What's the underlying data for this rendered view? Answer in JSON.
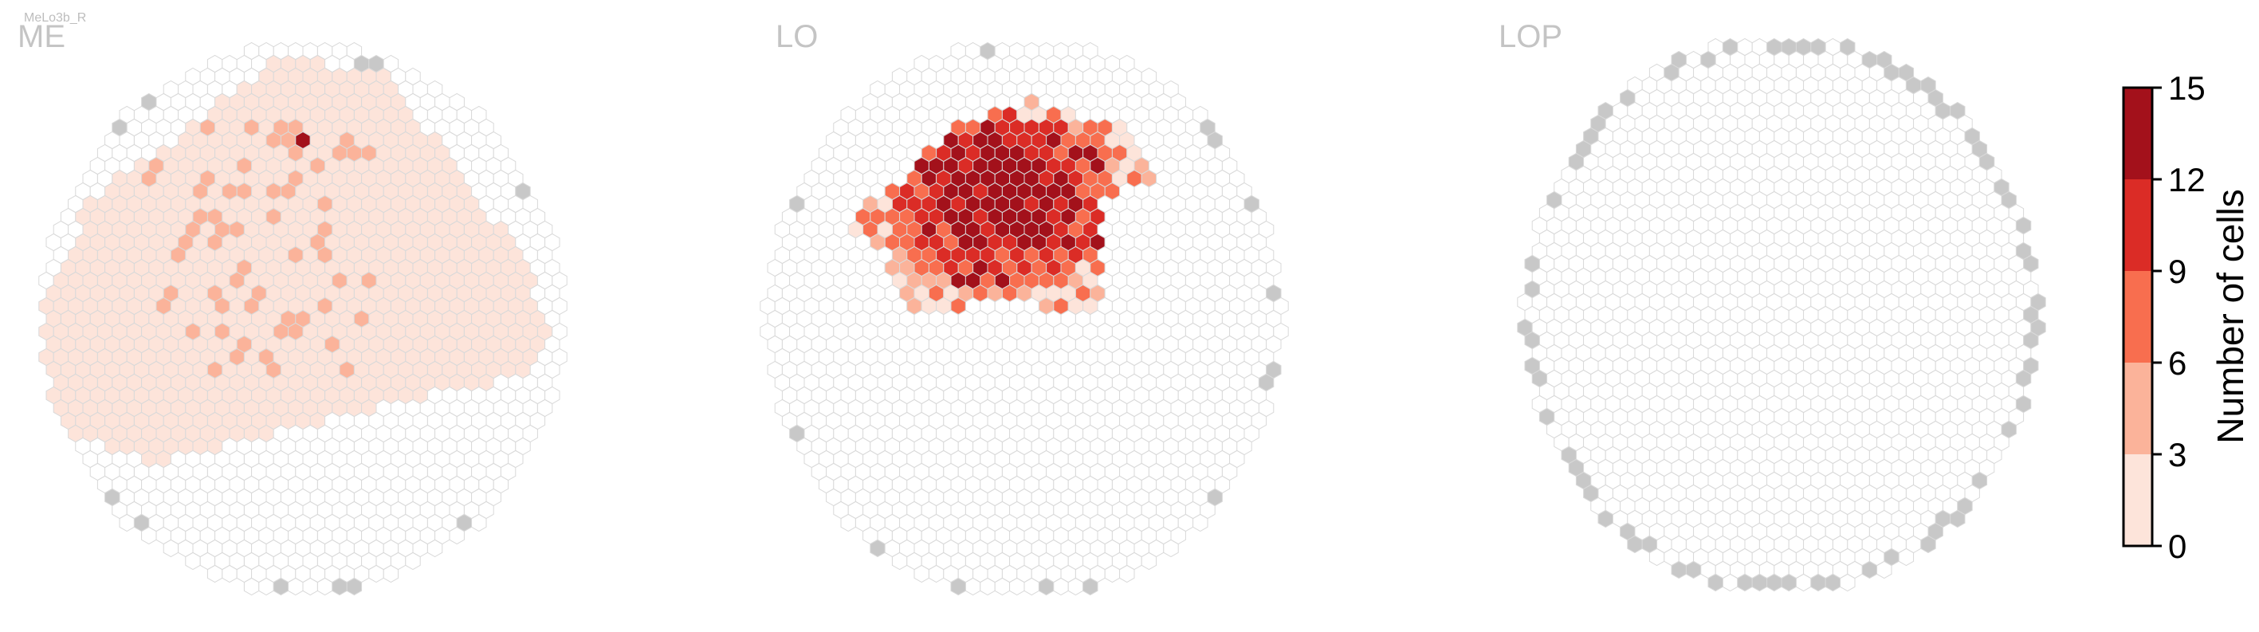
{
  "figure": {
    "suptitle": "MeLo3b_R",
    "panel_titles": [
      "ME",
      "LO",
      "LOP"
    ]
  },
  "colors": {
    "hex_outline": "#d9d9d9",
    "empty_fill": "#ffffff",
    "edge_fill": "#c8c8c8",
    "bins": [
      "#fde4da",
      "#fbb39a",
      "#f86e4f",
      "#db2c26",
      "#a3111b"
    ]
  },
  "chart_data": {
    "type": "heatmap",
    "description": "hexagonal eye-map heatmaps, one per neuropil",
    "colorbar": {
      "label": "Number of cells",
      "ticks": [
        0,
        3,
        6,
        9,
        12,
        15
      ],
      "range": [
        0,
        15
      ]
    },
    "panels": [
      {
        "name": "ME",
        "summary": "broad low-count coverage (0-3) over the upper and central eye field with scattered cells of 3-6 and one of 12-15",
        "bin_counts": {
          "0-3": 430,
          "3-6": 45,
          "6-9": 0,
          "9-12": 0,
          "12-15": 1
        }
      },
      {
        "name": "LO",
        "summary": "dense cluster of high counts (9-15) in the upper-left quadrant surrounded by 3-9",
        "bin_counts": {
          "0-3": 40,
          "3-6": 20,
          "6-9": 12,
          "9-12": 16,
          "12-15": 22
        }
      },
      {
        "name": "LOP",
        "summary": "no cells; only grey edge columns around the rim",
        "bin_counts": {
          "0-3": 0,
          "3-6": 0,
          "6-9": 0,
          "9-12": 0,
          "12-15": 0
        }
      }
    ]
  }
}
